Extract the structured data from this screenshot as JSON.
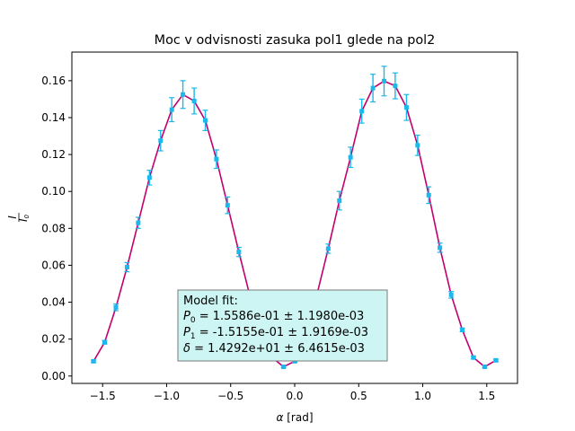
{
  "chart_data": {
    "type": "scatter",
    "title": "Moc v odvisnosti zasuka pol1 glede na pol2",
    "xlabel_symbol": "α",
    "xlabel_unit": "[rad]",
    "ylabel_num": "I",
    "ylabel_den": "I",
    "ylabel_den_sub": "0",
    "xlim": [
      -1.74,
      1.74
    ],
    "ylim": [
      -0.004,
      0.1755
    ],
    "xticks": [
      {
        "value": -1.5,
        "label": "−1.5"
      },
      {
        "value": -1.0,
        "label": "−1.0"
      },
      {
        "value": -0.5,
        "label": "−0.5"
      },
      {
        "value": 0.0,
        "label": "0.0"
      },
      {
        "value": 0.5,
        "label": "0.5"
      },
      {
        "value": 1.0,
        "label": "1.0"
      },
      {
        "value": 1.5,
        "label": "1.5"
      }
    ],
    "yticks": [
      {
        "value": 0.0,
        "label": "0.00"
      },
      {
        "value": 0.02,
        "label": "0.02"
      },
      {
        "value": 0.04,
        "label": "0.04"
      },
      {
        "value": 0.06,
        "label": "0.06"
      },
      {
        "value": 0.08,
        "label": "0.08"
      },
      {
        "value": 0.1,
        "label": "0.10"
      },
      {
        "value": 0.12,
        "label": "0.12"
      },
      {
        "value": 0.14,
        "label": "0.14"
      },
      {
        "value": 0.16,
        "label": "0.16"
      }
    ],
    "grid": false,
    "colors": {
      "data": "#1ab8ec",
      "fit": "#c2006e"
    },
    "data_series": {
      "x": [
        -1.571,
        -1.484,
        -1.396,
        -1.309,
        -1.222,
        -1.134,
        -1.047,
        -0.96,
        -0.873,
        -0.785,
        -0.698,
        -0.611,
        -0.524,
        -0.436,
        -0.349,
        -0.262,
        -0.175,
        -0.087,
        0.0,
        0.087,
        0.175,
        0.262,
        0.349,
        0.436,
        0.524,
        0.611,
        0.698,
        0.785,
        0.873,
        0.96,
        1.047,
        1.134,
        1.222,
        1.309,
        1.396,
        1.484,
        1.571
      ],
      "y": [
        0.008,
        0.0183,
        0.0372,
        0.059,
        0.083,
        0.1075,
        0.1275,
        0.1443,
        0.1525,
        0.149,
        0.1385,
        0.1175,
        0.0925,
        0.0672,
        0.0432,
        0.0225,
        0.01,
        0.005,
        0.008,
        0.021,
        0.0445,
        0.069,
        0.095,
        0.1185,
        0.1435,
        0.156,
        0.1598,
        0.1572,
        0.1455,
        0.125,
        0.098,
        0.0695,
        0.044,
        0.025,
        0.01,
        0.005,
        0.0085
      ],
      "yerr": [
        0.0006,
        0.001,
        0.0018,
        0.0025,
        0.003,
        0.004,
        0.0055,
        0.0065,
        0.0075,
        0.007,
        0.0055,
        0.005,
        0.0045,
        0.0025,
        0.0015,
        0.001,
        0.0005,
        0.0005,
        0.0005,
        0.001,
        0.0015,
        0.0025,
        0.005,
        0.0055,
        0.0065,
        0.0075,
        0.008,
        0.007,
        0.007,
        0.0055,
        0.0045,
        0.0025,
        0.0018,
        0.001,
        0.0006,
        0.0006,
        0.0006
      ]
    },
    "fit": {
      "P0": 0.15586,
      "P1": -0.15155,
      "delta": 14.292
    },
    "annotation": {
      "title": "Model fit:",
      "lines": [
        {
          "sym": "P",
          "sub": "0",
          "text": " = 1.5586e-01 ± 1.1980e-03"
        },
        {
          "sym": "P",
          "sub": "1",
          "text": " = -1.5155e-01 ± 1.9169e-03"
        },
        {
          "sym": "δ",
          "sub": "",
          "text": " = 1.4292e+01 ± 6.4615e-03"
        }
      ],
      "box_color": "#cdf5f3"
    }
  }
}
